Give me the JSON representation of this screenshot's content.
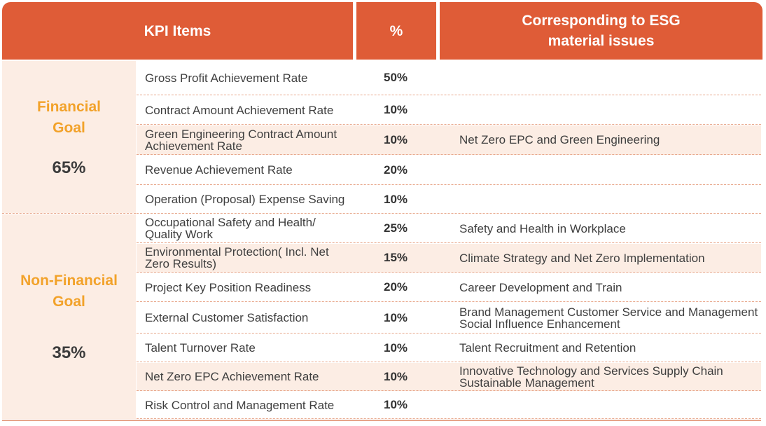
{
  "header": {
    "kpi_items": "KPI Items",
    "percent": "%",
    "esg_line1": "Corresponding to ESG",
    "esg_line2": "material issues"
  },
  "categories": [
    {
      "label_line1": "Financial",
      "label_line2": "Goal",
      "percent": "65%"
    },
    {
      "label_line1": "Non-Financial",
      "label_line2": "Goal",
      "percent": "35%"
    }
  ],
  "rows": [
    {
      "item_line1": "Gross Profit Achievement Rate",
      "item_line2": "",
      "percent": "50%",
      "esg_line1": "",
      "esg_line2": ""
    },
    {
      "item_line1": "Contract Amount Achievement Rate",
      "item_line2": "",
      "percent": "10%",
      "esg_line1": "",
      "esg_line2": ""
    },
    {
      "item_line1": "Green Engineering Contract Amount",
      "item_line2": "Achievement Rate",
      "percent": "10%",
      "esg_line1": "Net Zero EPC and Green Engineering",
      "esg_line2": ""
    },
    {
      "item_line1": "Revenue Achievement Rate",
      "item_line2": "",
      "percent": "20%",
      "esg_line1": "",
      "esg_line2": ""
    },
    {
      "item_line1": "Operation (Proposal) Expense Saving",
      "item_line2": "",
      "percent": "10%",
      "esg_line1": "",
      "esg_line2": ""
    },
    {
      "item_line1": "Occupational   Safety and Health/",
      "item_line2": "Quality Work",
      "percent": "25%",
      "esg_line1": "Safety and Health in Workplace",
      "esg_line2": ""
    },
    {
      "item_line1": "Environmental Protection( Incl. Net",
      "item_line2": "Zero Results)",
      "percent": "15%",
      "esg_line1": "Climate Strategy and Net Zero Implementation",
      "esg_line2": ""
    },
    {
      "item_line1": "Project Key Position Readiness",
      "item_line2": "",
      "percent": "20%",
      "esg_line1": "Career Development and Train",
      "esg_line2": ""
    },
    {
      "item_line1": "External Customer Satisfaction",
      "item_line2": "",
      "percent": "10%",
      "esg_line1": "Brand Management Customer Service and Management",
      "esg_line2": "Social Influence Enhancement"
    },
    {
      "item_line1": "Talent Turnover Rate",
      "item_line2": "",
      "percent": "10%",
      "esg_line1": "Talent Recruitment and Retention",
      "esg_line2": ""
    },
    {
      "item_line1": "Net Zero EPC Achievement Rate",
      "item_line2": "",
      "percent": "10%",
      "esg_line1": "Innovative Technology and Services Supply Chain",
      "esg_line2": "Sustainable Management"
    },
    {
      "item_line1": "Risk Control and Management Rate",
      "item_line2": "",
      "percent": "10%",
      "esg_line1": "",
      "esg_line2": ""
    }
  ],
  "colors": {
    "header_bg": "#DF5C37",
    "category_text": "#F2A22A",
    "highlight_bg": "#FCEDE4"
  }
}
